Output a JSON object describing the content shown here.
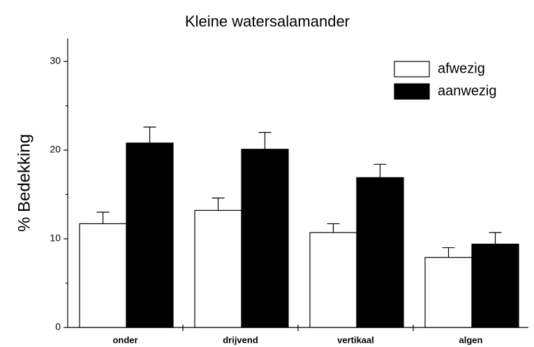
{
  "chart_data": {
    "type": "bar",
    "title": "Kleine watersalamander",
    "y_label": "% Bedekking",
    "categories": [
      "onder",
      "drijvend",
      "vertikaal",
      "algen"
    ],
    "series": [
      {
        "name": "afwezig",
        "color": "#ffffff",
        "values": [
          11.7,
          13.2,
          10.7,
          7.9
        ],
        "errors": [
          1.3,
          1.4,
          1.0,
          1.1
        ]
      },
      {
        "name": "aanwezig",
        "color": "#000000",
        "values": [
          20.8,
          20.1,
          16.9,
          9.4
        ],
        "errors": [
          1.8,
          1.9,
          1.5,
          1.3
        ]
      }
    ],
    "ylim": [
      0,
      32.6
    ],
    "yticks": [
      0,
      10,
      20,
      30
    ],
    "minor_yticks": [
      5,
      15,
      25
    ],
    "legend": "upper right",
    "error_bars": true
  }
}
